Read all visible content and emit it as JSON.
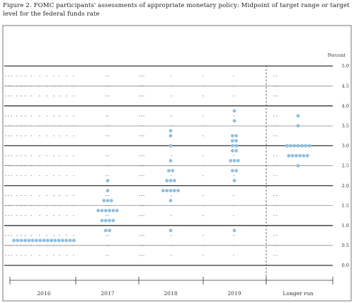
{
  "caption": "Figure 2. FOMC participants' assessments of appropriate monetary policy: Midpoint of target range or target level for the federal funds rate",
  "chart_data": {
    "type": "scatter",
    "title": "Figure 2. FOMC participants' assessments of appropriate monetary policy: Midpoint of target range or target level for the federal funds rate",
    "ylabel": "Percent",
    "ylim": [
      0,
      5.0
    ],
    "y_ticks": [
      "0.0",
      "0.5",
      "1.0",
      "1.5",
      "2.0",
      "2.5",
      "3.0",
      "3.5",
      "4.0",
      "4.5",
      "5.0"
    ],
    "categories": [
      "2016",
      "2017",
      "2018",
      "2019",
      "Longer run"
    ],
    "series": [
      {
        "values": [
          {
            "x": "2016",
            "y": 0.625,
            "count": 17
          },
          {
            "x": "2017",
            "y": 0.875,
            "count": 2
          },
          {
            "x": "2017",
            "y": 1.125,
            "count": 4
          },
          {
            "x": "2017",
            "y": 1.375,
            "count": 6
          },
          {
            "x": "2017",
            "y": 1.625,
            "count": 3
          },
          {
            "x": "2017",
            "y": 1.875,
            "count": 1
          },
          {
            "x": "2017",
            "y": 2.125,
            "count": 1
          },
          {
            "x": "2018",
            "y": 0.875,
            "count": 1
          },
          {
            "x": "2018",
            "y": 1.625,
            "count": 1
          },
          {
            "x": "2018",
            "y": 1.875,
            "count": 5
          },
          {
            "x": "2018",
            "y": 2.125,
            "count": 3
          },
          {
            "x": "2018",
            "y": 2.375,
            "count": 2
          },
          {
            "x": "2018",
            "y": 2.625,
            "count": 1
          },
          {
            "x": "2018",
            "y": 3.0,
            "count": 1
          },
          {
            "x": "2018",
            "y": 3.25,
            "count": 1
          },
          {
            "x": "2018",
            "y": 3.375,
            "count": 1
          },
          {
            "x": "2019",
            "y": 0.875,
            "count": 1
          },
          {
            "x": "2019",
            "y": 2.125,
            "count": 1
          },
          {
            "x": "2019",
            "y": 2.375,
            "count": 2
          },
          {
            "x": "2019",
            "y": 2.625,
            "count": 3
          },
          {
            "x": "2019",
            "y": 2.875,
            "count": 2
          },
          {
            "x": "2019",
            "y": 3.0,
            "count": 2
          },
          {
            "x": "2019",
            "y": 3.125,
            "count": 2
          },
          {
            "x": "2019",
            "y": 3.25,
            "count": 2
          },
          {
            "x": "2019",
            "y": 3.625,
            "count": 1
          },
          {
            "x": "2019",
            "y": 3.875,
            "count": 1
          },
          {
            "x": "Longer run",
            "y": 2.5,
            "count": 1
          },
          {
            "x": "Longer run",
            "y": 2.75,
            "count": 6
          },
          {
            "x": "Longer run",
            "y": 3.0,
            "count": 7
          },
          {
            "x": "Longer run",
            "y": 3.5,
            "count": 1
          },
          {
            "x": "Longer run",
            "y": 3.75,
            "count": 1
          }
        ]
      }
    ],
    "grid": true,
    "dot_color": "#8fbfe0"
  }
}
